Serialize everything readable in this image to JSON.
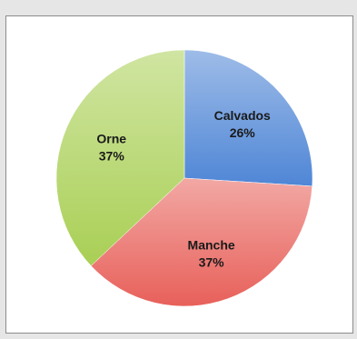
{
  "chart_data": {
    "type": "pie",
    "slices": [
      {
        "label": "Calvados",
        "value": 26,
        "value_label": "26%",
        "color": "#4f86d6"
      },
      {
        "label": "Manche",
        "value": 37,
        "value_label": "37%",
        "color": "#e8605a"
      },
      {
        "label": "Orne",
        "value": 37,
        "value_label": "37%",
        "color": "#a9cf55"
      }
    ],
    "start_angle_deg": 0,
    "direction": "clockwise",
    "legend": "none"
  }
}
